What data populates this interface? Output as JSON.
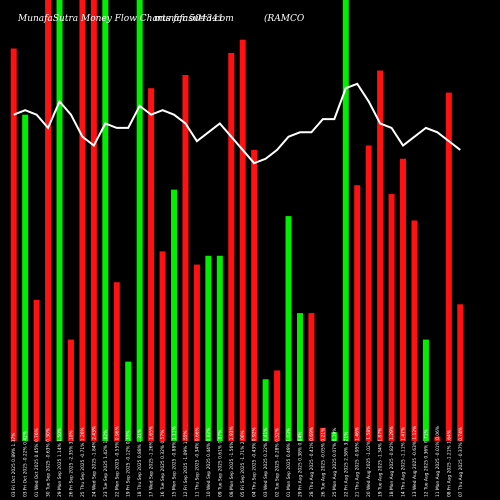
{
  "header": {
    "brand": "MunafaSutra Money Flow Charts for 504341",
    "site": "munafasutra.com",
    "symbol": "(RAMCO"
  },
  "chart_data": {
    "type": "bar",
    "ylim": [
      0,
      100
    ],
    "colors": {
      "up": "#00ee00",
      "down": "#ff1111",
      "line": "#ffffff",
      "background": "#000000"
    },
    "categories": [
      "03 Fri Oct 2025 0.89% 1.37%",
      "03 Fri Oct 2025 -0.22% 0.42%",
      "01 Wed Oct 2025 0.45% 0.76%",
      "30 Tue Sep 2025 -0.63% 0.30%",
      "29 Mon Sep 2025 1.14% 1.50%",
      "26 Fri Sep 2025 -2.35% 3.10%",
      "25 Thu Sep 2025 -0.71% 1.26%",
      "24 Wed Sep 2025 -1.84% 2.43%",
      "23 Tue Sep 2025 1.42% 1.82%",
      "22 Mon Sep 2025 -0.55% 0.98%",
      "19 Fri Sep 2025 -0.12% 0.33%",
      "18 Thu Sep 2025 0.88% 1.21%",
      "17 Wed Sep 2025 -1.26% 1.65%",
      "16 Tue Sep 2025 0.32% 0.57%",
      "15 Mon Sep 2025 -0.88% 1.11%",
      "12 Fri Sep 2025 -1.09% 1.55%",
      "11 Thu Sep 2025 -0.34% 0.66%",
      "10 Wed Sep 2025 0.44% 0.82%",
      "09 Tue Sep 2025 0.61% 0.97%",
      "08 Mon Sep 2025 -1.56% 1.93%",
      "05 Fri Sep 2025 -1.71% 2.06%",
      "04 Thu Sep 2025 -0.43% 0.92%",
      "03 Wed Sep 2025 0.22% 0.41%",
      "02 Tue Sep 2025 -0.28% 0.52%",
      "01 Mon Sep 2025 0.49% 1.03%",
      "29 Fri Aug 2025 0.38% 0.64%",
      "28 Thu Aug 2025 -0.41% 0.69%",
      "26 Tue Aug 2025 -0.05% 0.21%",
      "25 Mon Aug 2025 0.07% 0.19%",
      "22 Fri Aug 2025 2.58% 3.21%",
      "21 Thu Aug 2025 -0.95% 1.46%",
      "20 Wed Aug 2025 -1.02% 1.58%",
      "19 Tue Aug 2025 -1.34% 1.87%",
      "18 Mon Aug 2025 -0.82% 1.29%",
      "14 Thu Aug 2025 -1.11% 1.47%",
      "13 Wed Aug 2025 -0.63% 1.12%",
      "12 Tue Aug 2025 0.36% 0.71%",
      "11 Mon Aug 2025 -0.01% 0.06%",
      "08 Fri Aug 2025 -1.21% 1.64%",
      "07 Thu Aug 2025 -0.37% 0.74%"
    ],
    "bar_colors": [
      "down",
      "up",
      "down",
      "down",
      "up",
      "down",
      "down",
      "down",
      "up",
      "down",
      "up",
      "up",
      "down",
      "down",
      "up",
      "down",
      "down",
      "up",
      "up",
      "down",
      "down",
      "down",
      "up",
      "down",
      "up",
      "up",
      "down",
      "down",
      "up",
      "up",
      "down",
      "down",
      "down",
      "down",
      "down",
      "down",
      "up",
      "down",
      "down",
      "down"
    ],
    "values": [
      89,
      74,
      32,
      100,
      100,
      23,
      100,
      100,
      100,
      36,
      18,
      100,
      80,
      43,
      57,
      83,
      40,
      42,
      42,
      88,
      91,
      66,
      14,
      16,
      51,
      29,
      29,
      3,
      2,
      100,
      58,
      67,
      84,
      56,
      64,
      50,
      23,
      1,
      79,
      31
    ],
    "line": [
      74,
      75,
      74,
      71,
      77,
      74,
      69,
      67,
      72,
      71,
      71,
      76,
      74,
      75,
      74,
      72,
      68,
      70,
      72,
      69,
      66,
      63,
      64,
      66,
      69,
      70,
      70,
      73,
      73,
      80,
      81,
      77,
      72,
      71,
      67,
      69,
      71,
      70,
      68,
      66
    ]
  }
}
